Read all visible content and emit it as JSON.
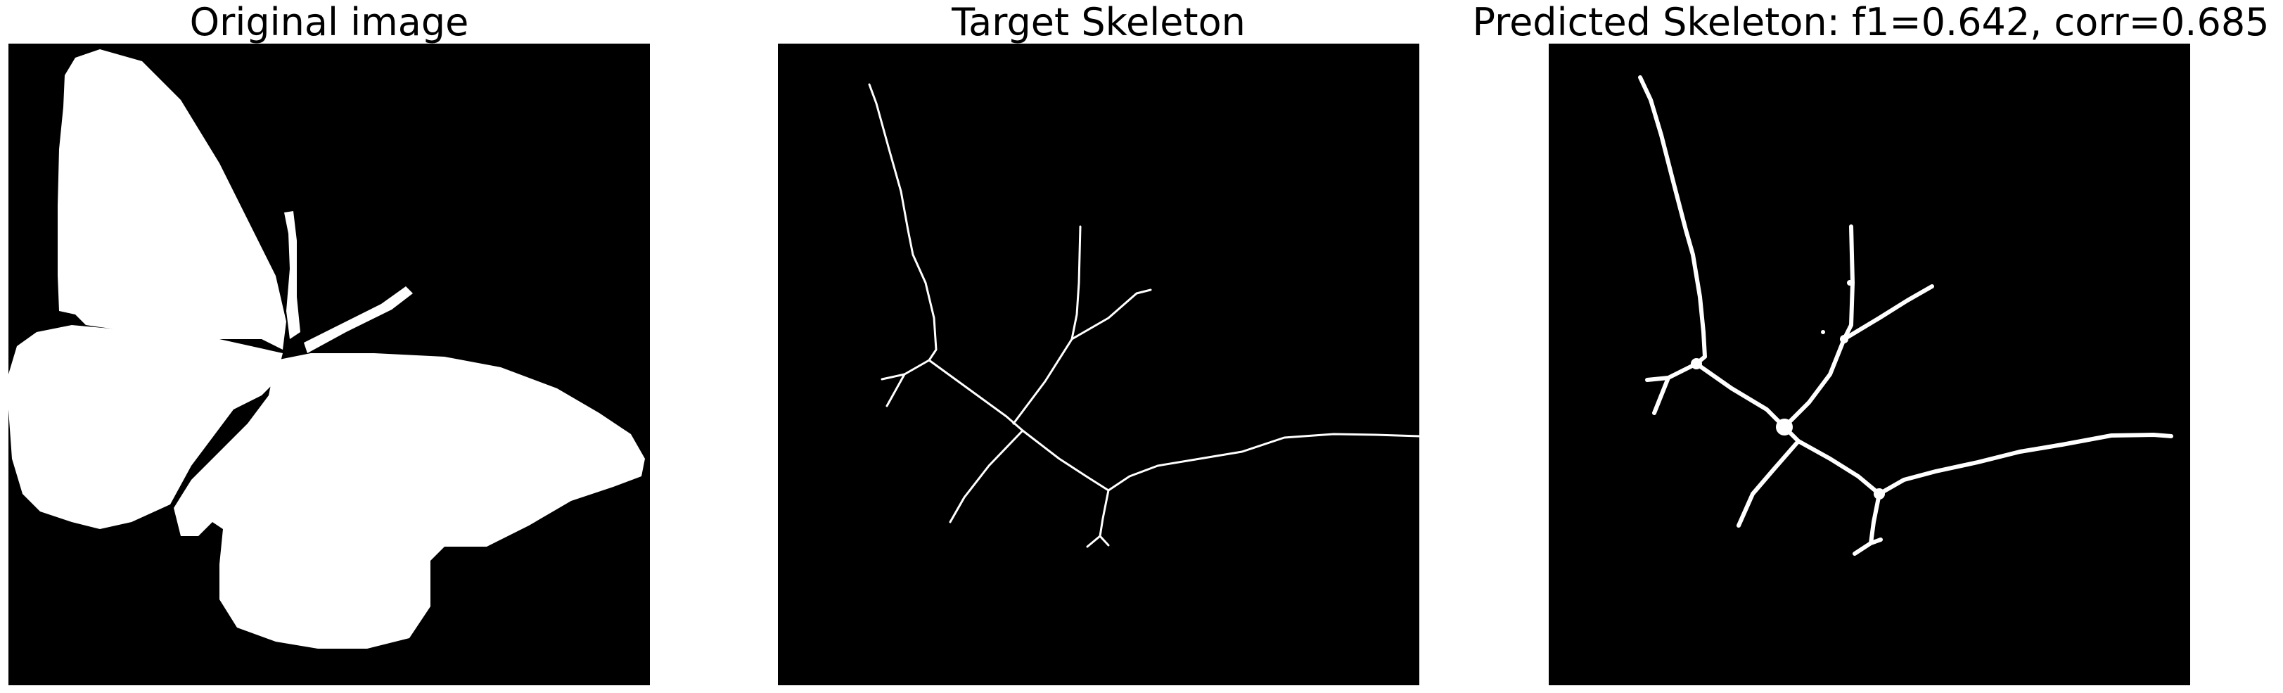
{
  "figure": {
    "panels": [
      {
        "id": "original",
        "title": "Original image"
      },
      {
        "id": "target",
        "title": "Target Skeleton"
      },
      {
        "id": "predicted",
        "title": "Predicted Skeleton: f1=0.642, corr=0.685"
      }
    ]
  },
  "colors": {
    "background": "#000000",
    "foreground": "#ffffff",
    "page": "#ffffff"
  }
}
